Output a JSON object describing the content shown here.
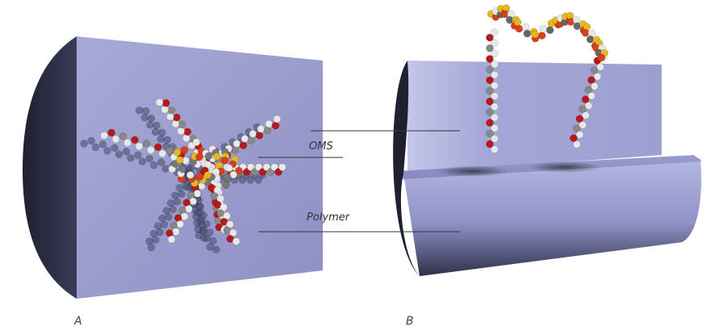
{
  "labels": {
    "oms": "OMS",
    "polymer": "Polymer"
  },
  "panels": [
    "A",
    "B"
  ]
}
